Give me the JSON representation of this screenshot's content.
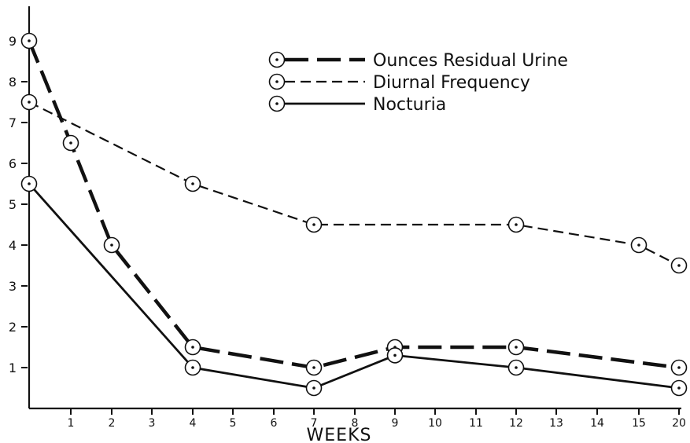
{
  "chart_data": {
    "type": "line",
    "title": "",
    "xlabel": "WEEKS",
    "ylabel": "",
    "xlim": [
      0,
      20
    ],
    "ylim": [
      0,
      9
    ],
    "y_ticks": [
      1,
      2,
      3,
      4,
      5,
      6,
      7,
      8,
      9
    ],
    "x_ticks": [
      "1",
      "2",
      "3",
      "4",
      "5",
      "6",
      "7",
      "8",
      "9",
      "10",
      "11",
      "12",
      "13",
      "14",
      "15",
      "20"
    ],
    "grid": false,
    "legend_position": "top-right",
    "series": [
      {
        "name": "Ounces Residual Urine",
        "style": "long-dash-heavy",
        "x": [
          0,
          1,
          2,
          4,
          7,
          9,
          12,
          20
        ],
        "y": [
          9,
          6.5,
          4,
          1.5,
          1,
          1.5,
          1.5,
          1
        ]
      },
      {
        "name": "Diurnal Frequency",
        "style": "dashed",
        "x": [
          0,
          4,
          7,
          12,
          15,
          20
        ],
        "y": [
          7.5,
          5.5,
          4.5,
          4.5,
          4,
          3.5
        ]
      },
      {
        "name": "Nocturia",
        "style": "solid",
        "x": [
          0,
          4,
          7,
          9,
          12,
          20
        ],
        "y": [
          5.5,
          1,
          0.5,
          1.3,
          1,
          0.5
        ]
      }
    ]
  }
}
